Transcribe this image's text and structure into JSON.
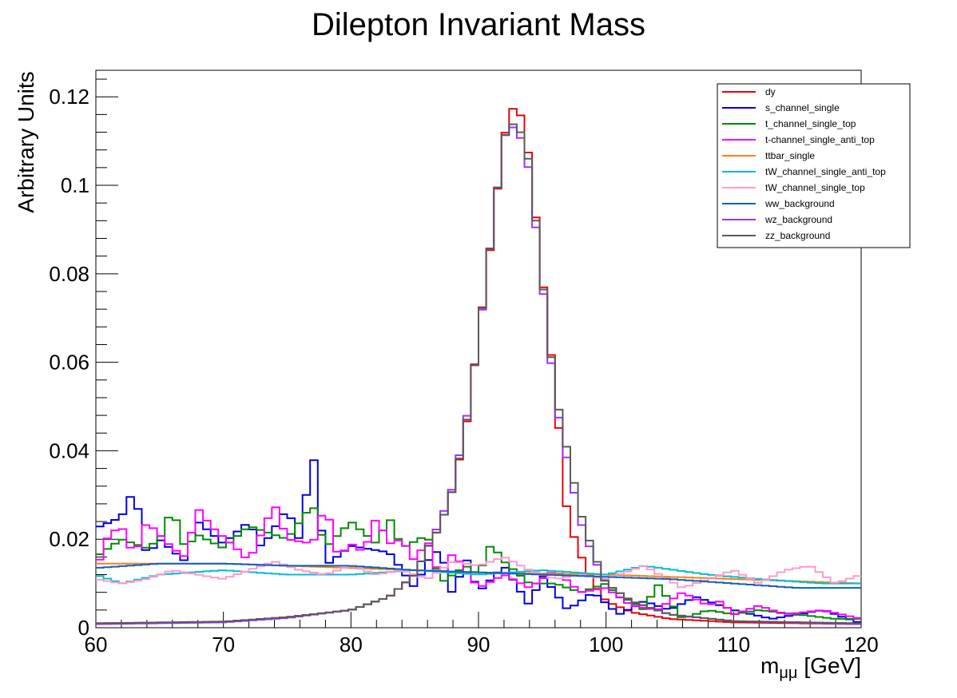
{
  "chart_data": {
    "type": "line",
    "style": "step-histogram",
    "title": "Dilepton Invariant Mass",
    "xlabel_main": "m",
    "xlabel_sub": "μμ",
    "xlabel_unit": "[GeV]",
    "ylabel": "Arbitrary Units",
    "xlim": [
      60,
      120
    ],
    "ylim": [
      0,
      0.126
    ],
    "grid": false,
    "legend_position": "top-right",
    "x_tick_labels": [
      "60",
      "70",
      "80",
      "90",
      "100",
      "110",
      "120"
    ],
    "y_tick_labels": [
      "0",
      "0.02",
      "0.04",
      "0.06",
      "0.08",
      "0.1",
      "0.12"
    ],
    "series": [
      {
        "name": "dy",
        "color": "#e8000b",
        "points": [
          [
            60,
            0.001
          ],
          [
            70,
            0.0013
          ],
          [
            75,
            0.0024
          ],
          [
            80,
            0.004
          ],
          [
            83,
            0.007
          ],
          [
            85,
            0.012
          ],
          [
            86,
            0.018
          ],
          [
            87,
            0.023
          ],
          [
            88,
            0.0315
          ],
          [
            89,
            0.0445
          ],
          [
            90,
            0.066
          ],
          [
            91,
            0.0875
          ],
          [
            92,
            0.111
          ],
          [
            93,
            0.12
          ],
          [
            94,
            0.106
          ],
          [
            95,
            0.0795
          ],
          [
            96,
            0.054
          ],
          [
            97,
            0.0245
          ],
          [
            98,
            0.0165
          ],
          [
            99,
            0.01
          ],
          [
            100,
            0.006
          ],
          [
            102,
            0.0035
          ],
          [
            105,
            0.002
          ],
          [
            110,
            0.0012
          ],
          [
            120,
            0.0008
          ]
        ]
      },
      {
        "name": "s_channel_single",
        "color": "#0000e0",
        "points": [
          [
            60,
            0.0225
          ],
          [
            62,
            0.025
          ],
          [
            63,
            0.0315
          ],
          [
            64,
            0.016
          ],
          [
            65,
            0.02
          ],
          [
            67,
            0.015
          ],
          [
            68,
            0.024
          ],
          [
            70,
            0.019
          ],
          [
            72,
            0.024
          ],
          [
            73,
            0.018
          ],
          [
            75,
            0.027
          ],
          [
            76,
            0.0195
          ],
          [
            77,
            0.0405
          ],
          [
            78,
            0.014
          ],
          [
            80,
            0.0185
          ],
          [
            83,
            0.017
          ],
          [
            85,
            0.009
          ],
          [
            86,
            0.015
          ],
          [
            87,
            0.018
          ],
          [
            88,
            0.007
          ],
          [
            89,
            0.016
          ],
          [
            90,
            0.008
          ],
          [
            92,
            0.014
          ],
          [
            94,
            0.005
          ],
          [
            95,
            0.012
          ],
          [
            97,
            0.004
          ],
          [
            99,
            0.008
          ],
          [
            101,
            0.003
          ],
          [
            103,
            0.006
          ],
          [
            105,
            0.004
          ],
          [
            107,
            0.007
          ],
          [
            110,
            0.004
          ],
          [
            113,
            0.002
          ],
          [
            117,
            0.004
          ],
          [
            120,
            0.001
          ]
        ]
      },
      {
        "name": "t_channel_single_top",
        "color": "#008b00",
        "points": [
          [
            60,
            0.016
          ],
          [
            62,
            0.02
          ],
          [
            64,
            0.018
          ],
          [
            65,
            0.02
          ],
          [
            66,
            0.027
          ],
          [
            67,
            0.018
          ],
          [
            68,
            0.021
          ],
          [
            70,
            0.018
          ],
          [
            72,
            0.023
          ],
          [
            75,
            0.02
          ],
          [
            77,
            0.028
          ],
          [
            78,
            0.018
          ],
          [
            80,
            0.024
          ],
          [
            82,
            0.019
          ],
          [
            83,
            0.025
          ],
          [
            84,
            0.018
          ],
          [
            86,
            0.021
          ],
          [
            87,
            0.01
          ],
          [
            89,
            0.014
          ],
          [
            90,
            0.012
          ],
          [
            91,
            0.019
          ],
          [
            92,
            0.015
          ],
          [
            94,
            0.01
          ],
          [
            96,
            0.01
          ],
          [
            98,
            0.008
          ],
          [
            100,
            0.01
          ],
          [
            101,
            0.007
          ],
          [
            102,
            0.006
          ],
          [
            103,
            0.004
          ],
          [
            104,
            0.01
          ],
          [
            106,
            0.002
          ],
          [
            108,
            0.004
          ],
          [
            110,
            0.003
          ],
          [
            112,
            0.004
          ],
          [
            115,
            0.003
          ],
          [
            118,
            0.002
          ],
          [
            120,
            0.002
          ]
        ]
      },
      {
        "name": "t-channel_single_anti_top",
        "color": "#ff00ff",
        "points": [
          [
            60,
            0.013
          ],
          [
            61,
            0.021
          ],
          [
            62,
            0.023
          ],
          [
            63,
            0.016
          ],
          [
            64,
            0.024
          ],
          [
            66,
            0.018
          ],
          [
            67,
            0.016
          ],
          [
            68,
            0.027
          ],
          [
            69,
            0.023
          ],
          [
            71,
            0.018
          ],
          [
            72,
            0.015
          ],
          [
            74,
            0.028
          ],
          [
            75,
            0.02
          ],
          [
            77,
            0.019
          ],
          [
            78,
            0.028
          ],
          [
            79,
            0.016
          ],
          [
            80,
            0.019
          ],
          [
            81,
            0.017
          ],
          [
            82,
            0.025
          ],
          [
            83,
            0.019
          ],
          [
            84,
            0.02
          ],
          [
            85,
            0.015
          ],
          [
            86,
            0.02
          ],
          [
            87,
            0.011
          ],
          [
            88,
            0.017
          ],
          [
            90,
            0.009
          ],
          [
            92,
            0.012
          ],
          [
            94,
            0.009
          ],
          [
            96,
            0.013
          ],
          [
            98,
            0.008
          ],
          [
            100,
            0.009
          ],
          [
            102,
            0.005
          ],
          [
            104,
            0.004
          ],
          [
            105,
            0.006
          ],
          [
            106,
            0.008
          ],
          [
            108,
            0.005
          ],
          [
            109,
            0.006
          ],
          [
            110,
            0.003
          ],
          [
            112,
            0.005
          ],
          [
            114,
            0.003
          ],
          [
            117,
            0.004
          ],
          [
            120,
            0.002
          ]
        ]
      },
      {
        "name": "ttbar_single",
        "color": "#ff7f0e",
        "points": [
          [
            60,
            0.0145
          ],
          [
            70,
            0.0145
          ],
          [
            80,
            0.0135
          ],
          [
            90,
            0.0125
          ],
          [
            100,
            0.012
          ],
          [
            110,
            0.011
          ],
          [
            120,
            0.01
          ]
        ]
      },
      {
        "name": "tW_channel_single_anti_top",
        "color": "#00bcd4",
        "points": [
          [
            60,
            0.012
          ],
          [
            62,
            0.01
          ],
          [
            65,
            0.012
          ],
          [
            70,
            0.013
          ],
          [
            75,
            0.012
          ],
          [
            80,
            0.012
          ],
          [
            85,
            0.013
          ],
          [
            90,
            0.012
          ],
          [
            95,
            0.013
          ],
          [
            100,
            0.012
          ],
          [
            103,
            0.014
          ],
          [
            108,
            0.012
          ],
          [
            112,
            0.011
          ],
          [
            117,
            0.01
          ],
          [
            120,
            0.01
          ]
        ]
      },
      {
        "name": "tW_channel_single_top",
        "color": "#ff99cc",
        "points": [
          [
            60,
            0.011
          ],
          [
            62,
            0.01
          ],
          [
            64,
            0.011
          ],
          [
            66,
            0.013
          ],
          [
            68,
            0.012
          ],
          [
            70,
            0.011
          ],
          [
            72,
            0.013
          ],
          [
            74,
            0.015
          ],
          [
            76,
            0.013
          ],
          [
            78,
            0.012
          ],
          [
            80,
            0.014
          ],
          [
            82,
            0.012
          ],
          [
            84,
            0.013
          ],
          [
            86,
            0.011
          ],
          [
            88,
            0.015
          ],
          [
            90,
            0.014
          ],
          [
            92,
            0.016
          ],
          [
            94,
            0.013
          ],
          [
            96,
            0.011
          ],
          [
            98,
            0.012
          ],
          [
            100,
            0.011
          ],
          [
            103,
            0.014
          ],
          [
            106,
            0.009
          ],
          [
            110,
            0.013
          ],
          [
            112,
            0.01
          ],
          [
            114,
            0.013
          ],
          [
            116,
            0.014
          ],
          [
            118,
            0.01
          ],
          [
            120,
            0.012
          ]
        ]
      },
      {
        "name": "ww_background",
        "color": "#1060c0",
        "points": [
          [
            60,
            0.0135
          ],
          [
            65,
            0.0145
          ],
          [
            70,
            0.0145
          ],
          [
            75,
            0.014
          ],
          [
            80,
            0.014
          ],
          [
            85,
            0.013
          ],
          [
            90,
            0.0125
          ],
          [
            95,
            0.012
          ],
          [
            100,
            0.0115
          ],
          [
            105,
            0.011
          ],
          [
            110,
            0.01
          ],
          [
            115,
            0.009
          ],
          [
            120,
            0.009
          ]
        ]
      },
      {
        "name": "wz_background",
        "color": "#9933ff",
        "points": [
          [
            60,
            0.0008
          ],
          [
            70,
            0.0012
          ],
          [
            75,
            0.0022
          ],
          [
            80,
            0.004
          ],
          [
            83,
            0.007
          ],
          [
            85,
            0.012
          ],
          [
            86,
            0.018
          ],
          [
            87,
            0.024
          ],
          [
            88,
            0.032
          ],
          [
            89,
            0.046
          ],
          [
            90,
            0.065
          ],
          [
            91,
            0.088
          ],
          [
            92,
            0.111
          ],
          [
            93,
            0.114
          ],
          [
            94,
            0.103
          ],
          [
            95,
            0.078
          ],
          [
            96,
            0.052
          ],
          [
            97,
            0.037
          ],
          [
            98,
            0.024
          ],
          [
            99,
            0.016
          ],
          [
            100,
            0.01
          ],
          [
            102,
            0.006
          ],
          [
            105,
            0.003
          ],
          [
            110,
            0.0015
          ],
          [
            120,
            0.0008
          ]
        ]
      },
      {
        "name": "zz_background",
        "color": "#5a5a5a",
        "points": [
          [
            60,
            0.001
          ],
          [
            70,
            0.0014
          ],
          [
            75,
            0.0024
          ],
          [
            80,
            0.004
          ],
          [
            83,
            0.007
          ],
          [
            85,
            0.012
          ],
          [
            86,
            0.018
          ],
          [
            87,
            0.023
          ],
          [
            88,
            0.0315
          ],
          [
            89,
            0.045
          ],
          [
            90,
            0.0655
          ],
          [
            91,
            0.088
          ],
          [
            92,
            0.111
          ],
          [
            93,
            0.115
          ],
          [
            94,
            0.105
          ],
          [
            95,
            0.079
          ],
          [
            96,
            0.0535
          ],
          [
            97,
            0.0395
          ],
          [
            98,
            0.026
          ],
          [
            99,
            0.017
          ],
          [
            100,
            0.01
          ],
          [
            102,
            0.006
          ],
          [
            105,
            0.003
          ],
          [
            110,
            0.0015
          ],
          [
            120,
            0.001
          ]
        ]
      }
    ]
  }
}
